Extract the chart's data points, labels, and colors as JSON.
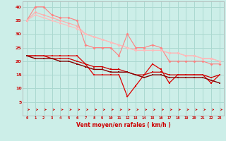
{
  "x": [
    0,
    1,
    2,
    3,
    4,
    5,
    6,
    7,
    8,
    9,
    10,
    11,
    12,
    13,
    14,
    15,
    16,
    17,
    18,
    19,
    20,
    21,
    22,
    23
  ],
  "line1": [
    35,
    40,
    40,
    37,
    36,
    36,
    35,
    26,
    25,
    25,
    25,
    22,
    30,
    25,
    25,
    26,
    25,
    20,
    20,
    20,
    20,
    20,
    19,
    19
  ],
  "line2": [
    35,
    38,
    37,
    36,
    35,
    34,
    33,
    30,
    29,
    28,
    27,
    26,
    25,
    24,
    24,
    24,
    24,
    23,
    23,
    22,
    22,
    21,
    21,
    20
  ],
  "line3": [
    35,
    37,
    36,
    35,
    34,
    33,
    32,
    30,
    29,
    28,
    27,
    26,
    25,
    24,
    24,
    24,
    24,
    23,
    23,
    22,
    22,
    21,
    21,
    20
  ],
  "line4": [
    22,
    22,
    22,
    22,
    22,
    22,
    22,
    19,
    15,
    15,
    15,
    15,
    7,
    11,
    15,
    19,
    17,
    12,
    15,
    15,
    15,
    15,
    12,
    15
  ],
  "line5": [
    22,
    22,
    22,
    21,
    21,
    21,
    20,
    19,
    18,
    18,
    17,
    17,
    16,
    15,
    15,
    16,
    16,
    15,
    15,
    15,
    15,
    15,
    14,
    15
  ],
  "line6": [
    22,
    21,
    21,
    21,
    20,
    20,
    19,
    18,
    17,
    17,
    16,
    16,
    16,
    15,
    14,
    15,
    15,
    14,
    14,
    14,
    14,
    14,
    13,
    12
  ],
  "bg_color": "#cceee8",
  "grid_color": "#aad8d0",
  "line1_color": "#ff8080",
  "line2_color": "#ffaaaa",
  "line3_color": "#ffbbbb",
  "line4_color": "#dd0000",
  "line5_color": "#cc0000",
  "line6_color": "#880000",
  "arrow_color": "#cc0000",
  "xlabel": "Vent moyen/en rafales ( km/h )",
  "ylim": [
    0,
    42
  ],
  "yticks": [
    5,
    10,
    15,
    20,
    25,
    30,
    35,
    40
  ]
}
